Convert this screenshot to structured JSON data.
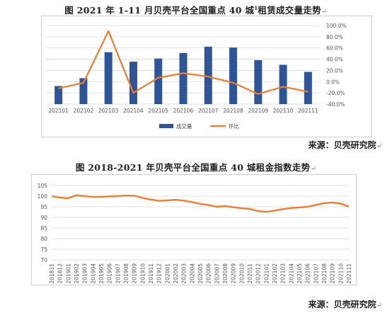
{
  "chart1": {
    "title": "图 2021 年 1-11 月贝壳平台全国重点 40 城",
    "title_sup": "1",
    "title_tail": "租赁成交量走势",
    "source": "来源：贝壳研究院",
    "colors": {
      "bar": "#2f5597",
      "line": "#ed7d31",
      "grid": "#d9d9d9"
    },
    "legend": {
      "bar": "成交量",
      "line": "环比"
    },
    "y_ticks": [
      "100.0%",
      "80.0%",
      "60.0%",
      "40.0%",
      "20.0%",
      "0.0%",
      "-20.0%",
      "-40.0%"
    ]
  },
  "chart2": {
    "title": "图 2018-2021 年贝壳平台全国重点 40 城租金指数走势",
    "source": "来源：贝壳研究院",
    "colors": {
      "line": "#ed7d31",
      "grid": "#d9d9d9"
    },
    "y_ticks": [
      "105",
      "100",
      "95",
      "90",
      "85",
      "80",
      "75",
      "70"
    ]
  },
  "chart_data": [
    {
      "type": "bar",
      "categories": [
        "202101",
        "202102",
        "202103",
        "202104",
        "202105",
        "202106",
        "202107",
        "202108",
        "202109",
        "202110",
        "202111"
      ],
      "series": [
        {
          "name": "成交量",
          "type": "bar",
          "axis": "relative",
          "values": [
            0.23,
            0.33,
            0.66,
            0.54,
            0.58,
            0.65,
            0.73,
            0.72,
            0.56,
            0.5,
            0.41
          ]
        },
        {
          "name": "环比",
          "type": "line",
          "axis": "right",
          "values": [
            -12,
            -2,
            90,
            -20,
            7,
            15,
            9,
            -2,
            -22,
            -9,
            -18
          ]
        }
      ],
      "y2lim": [
        -40,
        100
      ],
      "legend_position": "bottom"
    },
    {
      "type": "line",
      "categories": [
        "201811",
        "201812",
        "201901",
        "201902",
        "201903",
        "201904",
        "201905",
        "201906",
        "201907",
        "201908",
        "201909",
        "201910",
        "201911",
        "201912",
        "202001",
        "202002",
        "202003",
        "202004",
        "202005",
        "202006",
        "202007",
        "202008",
        "202009",
        "202010",
        "202011",
        "202012",
        "202101",
        "202102",
        "202103",
        "202104",
        "202105",
        "202106",
        "202107",
        "202108",
        "202109",
        "202110",
        "202111"
      ],
      "series": [
        {
          "name": "",
          "values": [
            100.0,
            99.3,
            99.0,
            100.4,
            100.0,
            99.7,
            99.7,
            99.9,
            100.0,
            100.3,
            100.2,
            99.2,
            98.4,
            97.8,
            98.0,
            98.3,
            97.9,
            97.2,
            96.4,
            95.8,
            95.0,
            95.3,
            94.8,
            94.3,
            94.0,
            93.0,
            92.6,
            93.2,
            93.9,
            94.4,
            94.7,
            95.0,
            95.9,
            96.7,
            97.0,
            96.5,
            95.1
          ]
        }
      ],
      "ylim": [
        70,
        105
      ],
      "y_ticks": [
        105,
        100,
        95,
        90,
        85,
        80,
        75,
        70
      ]
    }
  ]
}
